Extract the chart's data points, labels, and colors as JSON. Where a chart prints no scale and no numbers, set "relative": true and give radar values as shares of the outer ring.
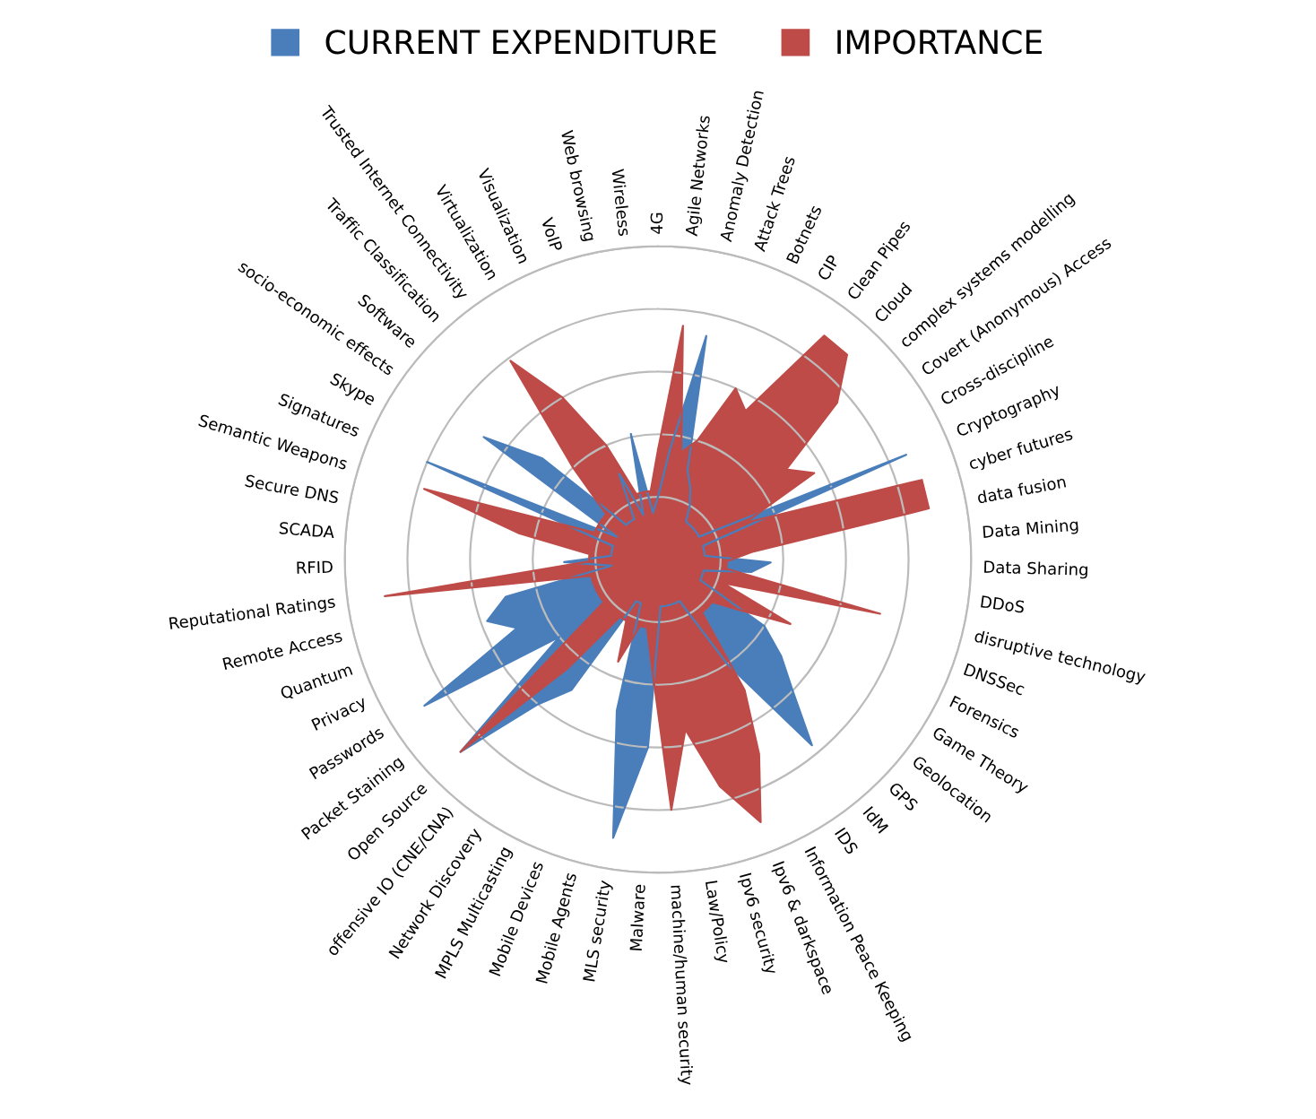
{
  "chart_data": {
    "type": "radar",
    "relative": true,
    "grid": true,
    "legend": "top",
    "marker": "none",
    "categories": [
      "4G",
      "Agile Networks",
      "Anomaly Detection",
      "Attack Trees",
      "Botnets",
      "CIP",
      "Clean Pipes",
      "Cloud",
      "complex systems modelling",
      "Covert (Anonymous) Access",
      "Cross-discipline",
      "Cryptography",
      "cyber futures",
      "data fusion",
      "Data Mining",
      "Data Sharing",
      "DDoS",
      "disruptive technology",
      "DNSSec",
      "Forensics",
      "Game Theory",
      "Geolocation",
      "GPS",
      "IdM",
      "IDS",
      "Information Peace Keeping",
      "Ipv6 & darkspace",
      "Ipv6 security",
      "Law/Policy",
      "machine/human security",
      "Malware",
      "MLS security",
      "Mobile Agents",
      "Mobile Devices",
      "MPLS Multicasting",
      "Network Discovery",
      "offensive IO (CNE/CNA)",
      "Open Source",
      "Packet Staining",
      "Passwords",
      "Privacy",
      "Quantum",
      "Remote Access",
      "Reputational Ratings",
      "RFID",
      "SCADA",
      "Secure DNS",
      "Semantic Weapons",
      "Signatures",
      "Skype",
      "socio-economic effects",
      "Software",
      "Traffic Classification",
      "Trusted Internet Connectivity",
      "Virtualization",
      "Visualization",
      "VoIP",
      "Web browsing",
      "Wireless"
    ],
    "series": [
      {
        "name": "CURRENT EXPENDITURE",
        "color": "#4a7ebb",
        "values": [
          0.2,
          0.35,
          0.73,
          0.3,
          0.25,
          0.2,
          0.15,
          0.15,
          0.15,
          0.15,
          0.15,
          0.86,
          0.15,
          0.15,
          0.15,
          0.36,
          0.3,
          0.15,
          0.15,
          0.15,
          0.4,
          0.5,
          0.6,
          0.77,
          0.4,
          0.15,
          0.15,
          0.15,
          0.15,
          0.15,
          0.6,
          0.9,
          0.5,
          0.15,
          0.15,
          0.5,
          0.6,
          0.88,
          0.4,
          0.88,
          0.5,
          0.58,
          0.5,
          0.15,
          0.3,
          0.15,
          0.15,
          0.15,
          0.8,
          0.15,
          0.68,
          0.49,
          0.15,
          0.15,
          0.15,
          0.3,
          0.15,
          0.41,
          0.15
        ]
      },
      {
        "name": "IMPORTANCE",
        "color": "#be4b48",
        "values": [
          0.35,
          0.75,
          0.35,
          0.4,
          0.6,
          0.55,
          0.89,
          0.89,
          0.76,
          0.5,
          0.57,
          0.3,
          0.88,
          0.88,
          0.3,
          0.22,
          0.22,
          0.73,
          0.22,
          0.47,
          0.3,
          0.22,
          0.22,
          0.22,
          0.5,
          0.7,
          0.9,
          0.75,
          0.55,
          0.8,
          0.35,
          0.22,
          0.22,
          0.35,
          0.22,
          0.22,
          0.45,
          0.88,
          0.22,
          0.22,
          0.22,
          0.22,
          0.22,
          0.88,
          0.22,
          0.22,
          0.45,
          0.78,
          0.22,
          0.22,
          0.22,
          0.22,
          0.4,
          0.79,
          0.6,
          0.4,
          0.22,
          0.22,
          0.22
        ]
      }
    ]
  }
}
